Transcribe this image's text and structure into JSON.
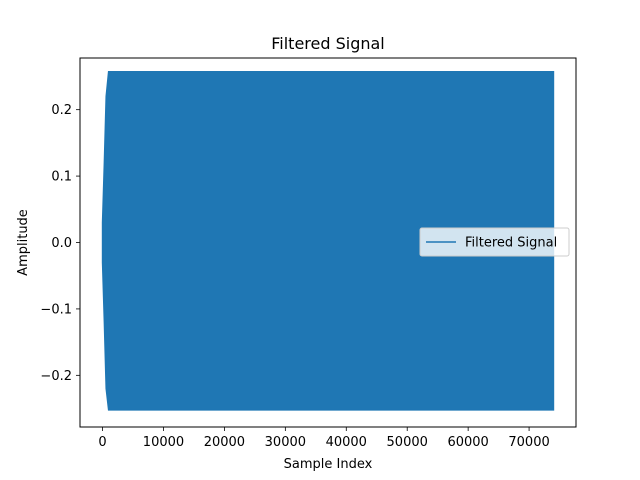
{
  "chart_data": {
    "type": "line",
    "title": "Filtered Signal",
    "xlabel": "Sample Index",
    "ylabel": "Amplitude",
    "xlim": [
      -3700,
      77700
    ],
    "ylim": [
      -0.2778,
      0.2778
    ],
    "xticks": [
      0,
      10000,
      20000,
      30000,
      40000,
      50000,
      60000,
      70000
    ],
    "xtick_labels": [
      "0",
      "10000",
      "20000",
      "30000",
      "40000",
      "50000",
      "60000",
      "70000"
    ],
    "yticks": [
      -0.2,
      -0.1,
      0.0,
      0.1,
      0.2
    ],
    "ytick_labels": [
      "−0.2",
      "−0.1",
      "0.0",
      "0.1",
      "0.2"
    ],
    "grid": false,
    "legend": {
      "placement": "center-right",
      "entries": [
        "Filtered Signal"
      ]
    },
    "series": [
      {
        "name": "Filtered Signal",
        "color": "#1f77b4",
        "x_range": [
          0,
          74000
        ],
        "envelope": [
          {
            "x": 0,
            "min": -0.03,
            "max": 0.03
          },
          {
            "x": 300,
            "min": -0.12,
            "max": 0.12
          },
          {
            "x": 600,
            "min": -0.22,
            "max": 0.22
          },
          {
            "x": 1000,
            "min": -0.252,
            "max": 0.257
          },
          {
            "x": 74000,
            "min": -0.252,
            "max": 0.257
          }
        ]
      }
    ]
  }
}
